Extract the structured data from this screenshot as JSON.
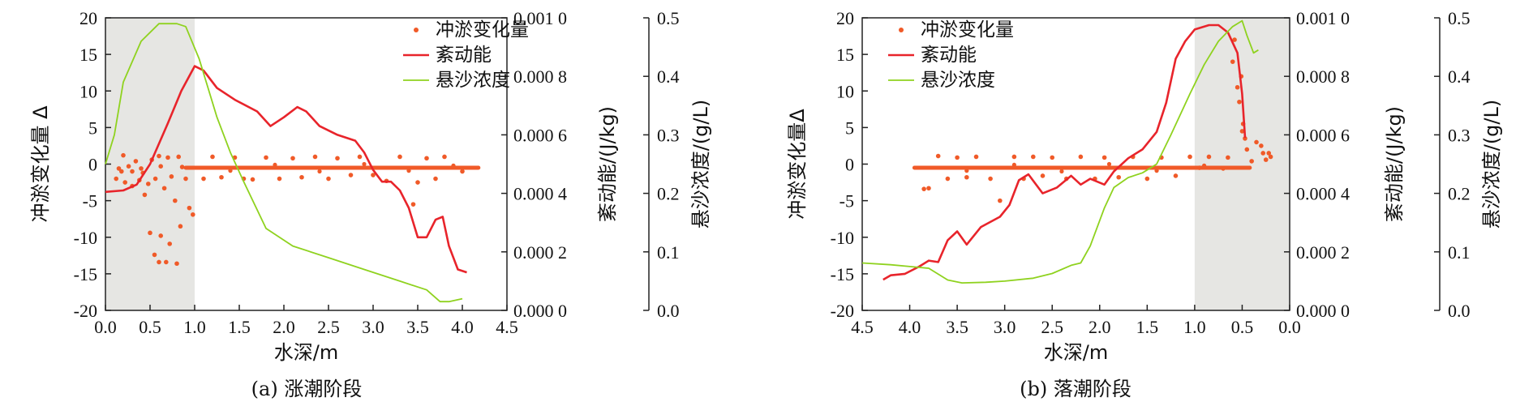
{
  "chart_data": [
    {
      "type": "scatter+line",
      "caption": "(a) 涨潮阶段",
      "xlabel": "水深/m",
      "x_reversed": false,
      "xlim": [
        0.0,
        4.5
      ],
      "x_ticks": [
        "0.0",
        "0.5",
        "1.0",
        "1.5",
        "2.0",
        "2.5",
        "3.0",
        "3.5",
        "4.0",
        "4.5"
      ],
      "shaded_x_range": [
        0.0,
        1.0
      ],
      "y_axes": [
        {
          "id": "delta",
          "label": "冲淤变化量 Δ",
          "lim": [
            -20,
            20
          ],
          "ticks": [
            "20",
            "15",
            "10",
            "5",
            "0",
            "-5",
            "-10",
            "-15",
            "-20"
          ]
        },
        {
          "id": "tke",
          "label": "紊动能/(J/kg)",
          "lim": [
            0,
            0.001
          ],
          "ticks": [
            "0.001 0",
            "0.000 8",
            "0.000 6",
            "0.000 4",
            "0.000 2",
            "0.000 0"
          ]
        },
        {
          "id": "ssc",
          "label": "悬沙浓度/(g/L)",
          "lim": [
            0,
            0.5
          ],
          "ticks": [
            "0.5",
            "0.4",
            "0.3",
            "0.2",
            "0.1",
            "0.0"
          ]
        }
      ],
      "legend": [
        "冲淤变化量",
        "紊动能",
        "悬沙浓度"
      ],
      "legend_position": "top-right",
      "series": [
        {
          "name": "冲淤变化量",
          "axis": "delta",
          "kind": "scatter",
          "color": "#f05a28",
          "points": [
            [
              0.12,
              -2.0
            ],
            [
              0.18,
              -1.0
            ],
            [
              0.22,
              -2.5
            ],
            [
              0.26,
              -0.3
            ],
            [
              0.3,
              -3.0
            ],
            [
              0.34,
              0.4
            ],
            [
              0.38,
              -2.2
            ],
            [
              0.42,
              -1.2
            ],
            [
              0.44,
              -4.2
            ],
            [
              0.48,
              -2.7
            ],
            [
              0.52,
              0.6
            ],
            [
              0.56,
              -2.0
            ],
            [
              0.6,
              1.1
            ],
            [
              0.62,
              -0.3
            ],
            [
              0.66,
              -3.3
            ],
            [
              0.7,
              0.9
            ],
            [
              0.74,
              -1.7
            ],
            [
              0.78,
              -5.0
            ],
            [
              0.82,
              1.0
            ],
            [
              0.86,
              -0.4
            ],
            [
              0.9,
              -2.0
            ],
            [
              0.94,
              -6.0
            ],
            [
              0.98,
              -6.9
            ],
            [
              0.5,
              -9.4
            ],
            [
              0.55,
              -12.4
            ],
            [
              0.6,
              -13.4
            ],
            [
              0.62,
              -9.8
            ],
            [
              0.68,
              -13.4
            ],
            [
              0.72,
              -10.9
            ],
            [
              0.8,
              -13.6
            ],
            [
              0.84,
              -8.5
            ],
            [
              0.2,
              1.2
            ],
            [
              0.3,
              -1.0
            ],
            [
              0.15,
              -0.6
            ],
            [
              0.4,
              -0.6
            ],
            [
              1.1,
              -2.0
            ],
            [
              1.2,
              1.0
            ],
            [
              1.3,
              -1.8
            ],
            [
              1.45,
              0.9
            ],
            [
              1.55,
              -2.0
            ],
            [
              1.65,
              -2.1
            ],
            [
              1.8,
              0.9
            ],
            [
              1.95,
              -2.0
            ],
            [
              2.1,
              0.8
            ],
            [
              2.2,
              -1.8
            ],
            [
              2.35,
              1.0
            ],
            [
              2.5,
              -2.0
            ],
            [
              2.6,
              0.8
            ],
            [
              2.75,
              -1.5
            ],
            [
              2.85,
              1.0
            ],
            [
              3.0,
              -1.5
            ],
            [
              3.15,
              -2.3
            ],
            [
              3.3,
              1.0
            ],
            [
              3.45,
              -5.5
            ],
            [
              3.5,
              -2.5
            ],
            [
              3.6,
              0.8
            ],
            [
              3.7,
              -2.0
            ],
            [
              3.8,
              1.0
            ],
            [
              4.0,
              -1.0
            ]
          ],
          "line_segment": {
            "x_range": [
              0.9,
              4.18
            ],
            "y": -0.5,
            "jitter": [
              [
                1.4,
                -0.9
              ],
              [
                1.9,
                -0.1
              ],
              [
                2.4,
                -1.0
              ],
              [
                2.9,
                0.0
              ],
              [
                3.4,
                -0.9
              ],
              [
                3.9,
                -0.2
              ]
            ]
          }
        },
        {
          "name": "紊动能",
          "axis": "tke",
          "kind": "line",
          "color": "#e8242b",
          "points": [
            [
              0.0,
              0.000405
            ],
            [
              0.2,
              0.00041
            ],
            [
              0.35,
              0.00043
            ],
            [
              0.5,
              0.0005
            ],
            [
              0.7,
              0.00064
            ],
            [
              0.85,
              0.00075
            ],
            [
              1.0,
              0.000835
            ],
            [
              1.1,
              0.00082
            ],
            [
              1.25,
              0.00076
            ],
            [
              1.45,
              0.00072
            ],
            [
              1.7,
              0.00068
            ],
            [
              1.85,
              0.00063
            ],
            [
              2.0,
              0.00066
            ],
            [
              2.15,
              0.000695
            ],
            [
              2.25,
              0.00068
            ],
            [
              2.4,
              0.00063
            ],
            [
              2.6,
              0.0006
            ],
            [
              2.8,
              0.00058
            ],
            [
              2.9,
              0.00054
            ],
            [
              3.0,
              0.00048
            ],
            [
              3.1,
              0.00044
            ],
            [
              3.2,
              0.00044
            ],
            [
              3.3,
              0.00041
            ],
            [
              3.4,
              0.00035
            ],
            [
              3.5,
              0.00025
            ],
            [
              3.6,
              0.00025
            ],
            [
              3.7,
              0.00031
            ],
            [
              3.78,
              0.00032
            ],
            [
              3.85,
              0.00022
            ],
            [
              3.95,
              0.00014
            ],
            [
              4.05,
              0.00013
            ]
          ]
        },
        {
          "name": "悬沙浓度",
          "axis": "ssc",
          "kind": "line",
          "color": "#8fd21f",
          "points": [
            [
              0.0,
              0.25
            ],
            [
              0.1,
              0.3
            ],
            [
              0.2,
              0.39
            ],
            [
              0.4,
              0.46
            ],
            [
              0.6,
              0.49
            ],
            [
              0.8,
              0.49
            ],
            [
              0.9,
              0.485
            ],
            [
              1.05,
              0.43
            ],
            [
              1.25,
              0.33
            ],
            [
              1.4,
              0.27
            ],
            [
              1.55,
              0.22
            ],
            [
              1.8,
              0.14
            ],
            [
              2.1,
              0.11
            ],
            [
              2.5,
              0.09
            ],
            [
              2.9,
              0.07
            ],
            [
              3.3,
              0.05
            ],
            [
              3.6,
              0.035
            ],
            [
              3.75,
              0.015
            ],
            [
              3.85,
              0.015
            ],
            [
              4.0,
              0.02
            ]
          ]
        }
      ]
    },
    {
      "type": "scatter+line",
      "caption": "(b) 落潮阶段",
      "xlabel": "水深/m",
      "x_reversed": true,
      "xlim": [
        4.5,
        0.0
      ],
      "x_ticks": [
        "4.5",
        "4.0",
        "3.5",
        "3.0",
        "2.5",
        "2.0",
        "1.5",
        "1.0",
        "0.5",
        "0.0"
      ],
      "shaded_x_range": [
        0.0,
        1.0
      ],
      "y_axes": [
        {
          "id": "delta",
          "label": "冲淤变化量Δ",
          "lim": [
            -20,
            20
          ],
          "ticks": [
            "20",
            "15",
            "10",
            "5",
            "0",
            "-5",
            "-10",
            "-15",
            "-20"
          ]
        },
        {
          "id": "tke",
          "label": "紊动能/(J/kg)",
          "lim": [
            0,
            0.001
          ],
          "ticks": [
            "0.001 0",
            "0.000 8",
            "0.000 6",
            "0.000 4",
            "0.000 2",
            "0.000 0"
          ]
        },
        {
          "id": "ssc",
          "label": "悬沙浓度/(g/L)",
          "lim": [
            0,
            0.5
          ],
          "ticks": [
            "0.5",
            "0.4",
            "0.3",
            "0.2",
            "0.1",
            "0.0"
          ]
        }
      ],
      "legend": [
        "冲淤变化量",
        "紊动能",
        "悬沙浓度"
      ],
      "legend_position": "top-left",
      "series": [
        {
          "name": "冲淤变化量",
          "axis": "delta",
          "kind": "scatter",
          "color": "#f05a28",
          "points": [
            [
              3.85,
              -3.4
            ],
            [
              3.8,
              -3.3
            ],
            [
              3.7,
              1.1
            ],
            [
              3.6,
              -2.0
            ],
            [
              3.5,
              0.9
            ],
            [
              3.4,
              -1.8
            ],
            [
              3.3,
              1.0
            ],
            [
              3.15,
              -2.0
            ],
            [
              3.05,
              -5.0
            ],
            [
              2.9,
              1.0
            ],
            [
              2.8,
              -2.0
            ],
            [
              2.7,
              1.0
            ],
            [
              2.6,
              -1.6
            ],
            [
              2.5,
              0.9
            ],
            [
              2.35,
              -2.0
            ],
            [
              2.2,
              1.0
            ],
            [
              2.05,
              -2.0
            ],
            [
              1.95,
              0.9
            ],
            [
              1.8,
              -1.8
            ],
            [
              1.65,
              1.0
            ],
            [
              1.5,
              -2.0
            ],
            [
              1.35,
              0.9
            ],
            [
              1.2,
              -1.6
            ],
            [
              1.05,
              1.0
            ],
            [
              0.95,
              -0.5
            ],
            [
              0.85,
              1.0
            ],
            [
              0.7,
              -0.6
            ],
            [
              0.65,
              0.9
            ],
            [
              0.6,
              14.0
            ],
            [
              0.58,
              17.0
            ],
            [
              0.55,
              10.5
            ],
            [
              0.53,
              8.5
            ],
            [
              0.51,
              12.0
            ],
            [
              0.5,
              4.5
            ],
            [
              0.49,
              5.5
            ],
            [
              0.47,
              3.5
            ],
            [
              0.45,
              2.0
            ],
            [
              0.4,
              0.4
            ],
            [
              0.35,
              3.0
            ],
            [
              0.3,
              2.5
            ],
            [
              0.28,
              1.5
            ],
            [
              0.25,
              0.6
            ],
            [
              0.22,
              1.5
            ],
            [
              0.2,
              1.0
            ]
          ],
          "line_segment": {
            "x_range": [
              0.42,
              3.95
            ],
            "y": -0.5,
            "jitter": [
              [
                3.4,
                -0.9
              ],
              [
                2.9,
                -0.1
              ],
              [
                2.4,
                -1.0
              ],
              [
                1.9,
                0.0
              ],
              [
                1.4,
                -0.9
              ],
              [
                0.9,
                -0.2
              ]
            ]
          }
        },
        {
          "name": "紊动能",
          "axis": "tke",
          "kind": "line",
          "color": "#e8242b",
          "points": [
            [
              4.28,
              0.000105
            ],
            [
              4.2,
              0.00012
            ],
            [
              4.05,
              0.000125
            ],
            [
              3.9,
              0.00015
            ],
            [
              3.8,
              0.00017
            ],
            [
              3.7,
              0.000165
            ],
            [
              3.6,
              0.00024
            ],
            [
              3.5,
              0.00027
            ],
            [
              3.4,
              0.000225
            ],
            [
              3.25,
              0.000285
            ],
            [
              3.05,
              0.00032
            ],
            [
              2.95,
              0.00036
            ],
            [
              2.85,
              0.000445
            ],
            [
              2.75,
              0.000465
            ],
            [
              2.6,
              0.0004
            ],
            [
              2.45,
              0.00042
            ],
            [
              2.3,
              0.00046
            ],
            [
              2.2,
              0.00043
            ],
            [
              2.1,
              0.00045
            ],
            [
              1.95,
              0.00043
            ],
            [
              1.85,
              0.000475
            ],
            [
              1.7,
              0.00052
            ],
            [
              1.55,
              0.00055
            ],
            [
              1.4,
              0.00061
            ],
            [
              1.3,
              0.00071
            ],
            [
              1.2,
              0.00086
            ],
            [
              1.1,
              0.00092
            ],
            [
              1.0,
              0.00096
            ],
            [
              0.85,
              0.000975
            ],
            [
              0.75,
              0.000975
            ],
            [
              0.65,
              0.00095
            ],
            [
              0.55,
              0.00088
            ],
            [
              0.5,
              0.00074
            ],
            [
              0.47,
              0.00059
            ]
          ]
        },
        {
          "name": "悬沙浓度",
          "axis": "ssc",
          "kind": "line",
          "color": "#8fd21f",
          "points": [
            [
              4.5,
              0.081
            ],
            [
              4.2,
              0.078
            ],
            [
              4.0,
              0.075
            ],
            [
              3.8,
              0.072
            ],
            [
              3.6,
              0.052
            ],
            [
              3.45,
              0.047
            ],
            [
              3.2,
              0.048
            ],
            [
              3.0,
              0.05
            ],
            [
              2.7,
              0.055
            ],
            [
              2.5,
              0.063
            ],
            [
              2.3,
              0.077
            ],
            [
              2.2,
              0.081
            ],
            [
              2.1,
              0.11
            ],
            [
              1.95,
              0.175
            ],
            [
              1.85,
              0.21
            ],
            [
              1.7,
              0.227
            ],
            [
              1.55,
              0.235
            ],
            [
              1.4,
              0.25
            ],
            [
              1.25,
              0.3
            ],
            [
              1.05,
              0.37
            ],
            [
              0.9,
              0.42
            ],
            [
              0.75,
              0.46
            ],
            [
              0.6,
              0.485
            ],
            [
              0.5,
              0.495
            ],
            [
              0.45,
              0.47
            ],
            [
              0.38,
              0.44
            ],
            [
              0.33,
              0.445
            ]
          ]
        }
      ]
    }
  ]
}
